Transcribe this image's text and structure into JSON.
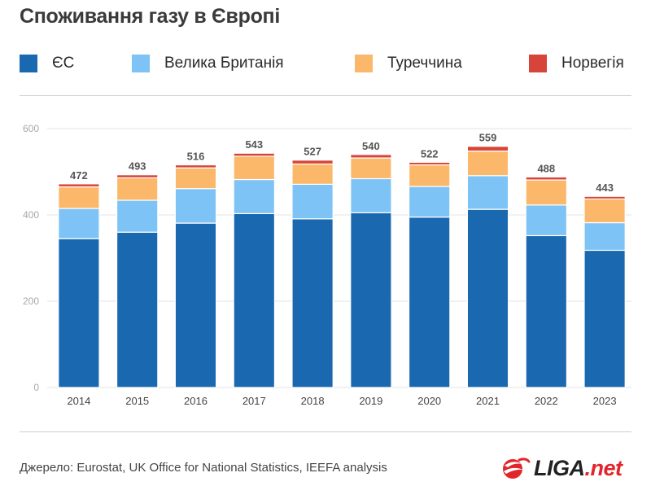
{
  "title": "Споживання газу в Європі",
  "colors": {
    "eu": "#1a69b0",
    "uk": "#7ec3f5",
    "turkey": "#fcb86a",
    "norway": "#d7453a",
    "total_label": "#555555",
    "grid": "#e3e3e3",
    "axis_text": "#a8a8a8",
    "logo_red": "#e2252b"
  },
  "source": "Джерело: Eurostat, UK Office for National Statistics, IEEFA analysis",
  "logo": {
    "main": "LIGA",
    "suffix": ".net",
    "icon": "liga-logo-icon"
  },
  "chart_data": {
    "type": "bar",
    "stacked": true,
    "title": "Споживання газу в Європі",
    "xlabel": "",
    "ylabel": "",
    "ylim": [
      0,
      600
    ],
    "yticks": [
      "0",
      "200",
      "400",
      "600"
    ],
    "grid": true,
    "legend_position": "top",
    "categories": [
      "2014",
      "2015",
      "2016",
      "2017",
      "2018",
      "2019",
      "2020",
      "2021",
      "2022",
      "2023"
    ],
    "series": [
      {
        "name": "ЄС",
        "color_key": "eu",
        "values": [
          345,
          360,
          381,
          403,
          391,
          405,
          395,
          413,
          352,
          318
        ]
      },
      {
        "name": "Велика Британія",
        "color_key": "uk",
        "values": [
          70,
          74,
          80,
          79,
          80,
          79,
          71,
          78,
          71,
          64
        ]
      },
      {
        "name": "Туреччина",
        "color_key": "turkey",
        "values": [
          50,
          52,
          48,
          54,
          47,
          48,
          50,
          57,
          58,
          55
        ]
      },
      {
        "name": "Норвегія",
        "color_key": "norway",
        "values": [
          7,
          7,
          7,
          7,
          9,
          8,
          6,
          11,
          7,
          6
        ]
      }
    ],
    "totals": [
      472,
      493,
      516,
      543,
      527,
      540,
      522,
      559,
      488,
      443
    ]
  }
}
